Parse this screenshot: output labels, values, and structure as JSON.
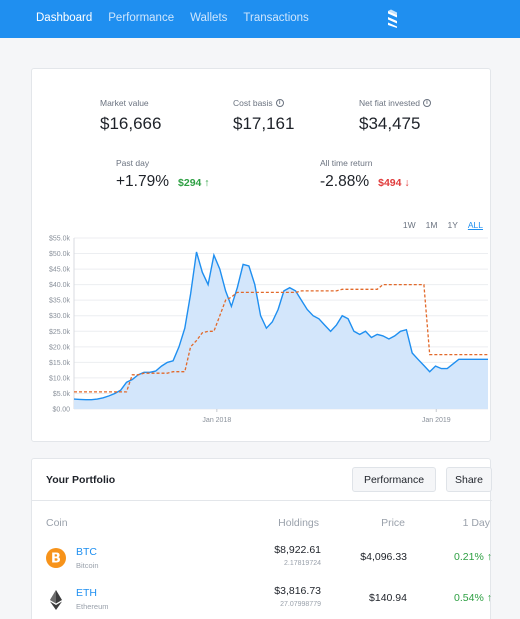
{
  "nav": {
    "items": [
      "Dashboard",
      "Performance",
      "Wallets",
      "Transactions"
    ],
    "active": "Dashboard",
    "accent": "#1f8ff0"
  },
  "summary": {
    "market_value": {
      "label": "Market value",
      "value": "$16,666"
    },
    "cost_basis": {
      "label": "Cost basis",
      "value": "$17,161"
    },
    "net_fiat": {
      "label": "Net fiat invested",
      "value": "$34,475"
    },
    "past_day": {
      "label": "Past day",
      "pct": "+1.79%",
      "amount": "$294",
      "direction": "up",
      "color": "#2ea043"
    },
    "all_time": {
      "label": "All time return",
      "pct": "-2.88%",
      "amount": "$494",
      "direction": "down",
      "color": "#e03b3b"
    }
  },
  "ranges": [
    "1W",
    "1M",
    "1Y",
    "ALL"
  ],
  "selected_range": "ALL",
  "chart_data": {
    "type": "area",
    "x_ticks": [
      "Jan 2018",
      "Jan 2019"
    ],
    "y_ticks": [
      "$55.0k",
      "$50.0k",
      "$45.0k",
      "$40.0k",
      "$35.0k",
      "$30.0k",
      "$25.0k",
      "$20.0k",
      "$15.0k",
      "$10.0k",
      "$5.0k",
      "$0.00"
    ],
    "ylim": [
      0,
      55000
    ],
    "grid": true,
    "series": [
      {
        "style": "filled line",
        "color": "#1f8ff0",
        "values": [
          3200,
          3100,
          3000,
          3000,
          3200,
          3600,
          4200,
          5000,
          6000,
          8600,
          9500,
          11000,
          11800,
          11800,
          12200,
          13800,
          15000,
          15500,
          20000,
          26000,
          37000,
          50500,
          44000,
          40000,
          49500,
          45000,
          38000,
          33000,
          39000,
          46500,
          46000,
          40000,
          30000,
          26000,
          28000,
          32000,
          38000,
          39000,
          38000,
          35000,
          32000,
          30000,
          29000,
          27000,
          25000,
          27000,
          30000,
          29000,
          25000,
          24000,
          25000,
          23000,
          24000,
          23500,
          22500,
          23500,
          25000,
          25500,
          18000,
          16000,
          14000,
          12000,
          13800,
          13000,
          13000,
          14500,
          16000,
          16000,
          16000,
          16000,
          16000,
          16000
        ]
      },
      {
        "style": "dashed line",
        "color": "#e2692a",
        "values": [
          5500,
          5500,
          5500,
          5500,
          5500,
          5500,
          5500,
          5500,
          5500,
          5500,
          11000,
          11000,
          11500,
          11500,
          11500,
          11500,
          11500,
          12000,
          12000,
          12000,
          20000,
          22000,
          24500,
          25000,
          25000,
          30000,
          35000,
          36000,
          37500,
          37500,
          37500,
          37500,
          37500,
          37500,
          37500,
          37500,
          37500,
          37500,
          37500,
          38000,
          38000,
          38000,
          38000,
          38000,
          38000,
          38000,
          38500,
          38500,
          38500,
          38500,
          38500,
          38500,
          38500,
          40000,
          40000,
          40000,
          40000,
          40000,
          40000,
          40000,
          40000,
          17500,
          17500,
          17500,
          17500,
          17500,
          17500,
          17500,
          17500,
          17500,
          17500,
          17500
        ]
      }
    ]
  },
  "portfolio": {
    "title": "Your Portfolio",
    "performance_btn": "Performance",
    "share_btn": "Share",
    "columns": {
      "coin": "Coin",
      "holdings": "Holdings",
      "price": "Price",
      "day": "1 Day"
    },
    "rows": [
      {
        "symbol": "BTC",
        "name": "Bitcoin",
        "holdings": "$8,922.61",
        "qty": "2.17819724",
        "price": "$4,096.33",
        "change": "0.21%",
        "icon": "bitcoin-icon",
        "color": "#f7931a"
      },
      {
        "symbol": "ETH",
        "name": "Ethereum",
        "holdings": "$3,816.73",
        "qty": "27.07998779",
        "price": "$140.94",
        "change": "0.54%",
        "icon": "ethereum-icon",
        "color": "#3c3c3d"
      }
    ]
  }
}
